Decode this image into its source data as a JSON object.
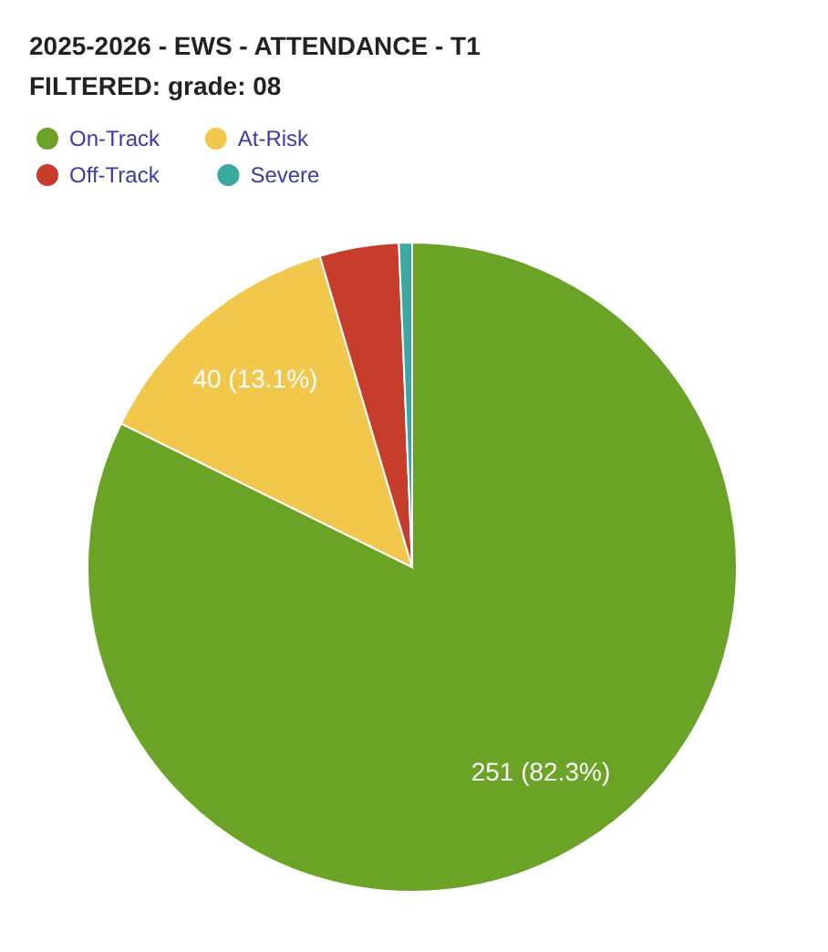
{
  "chart_data": {
    "type": "pie",
    "title": "2025-2026 - EWS - ATTENDANCE - T1",
    "subtitle": "FILTERED: grade: 08",
    "categories": [
      "On-Track",
      "At-Risk",
      "Off-Track",
      "Severe"
    ],
    "values": [
      251,
      40,
      12,
      2
    ],
    "colors": [
      "#6aa326",
      "#f1c84b",
      "#c63d2b",
      "#3aa9a0"
    ],
    "value_labels": [
      "251 (82.3%)",
      "40 (13.1%)",
      null,
      null
    ],
    "legend": "top left"
  }
}
